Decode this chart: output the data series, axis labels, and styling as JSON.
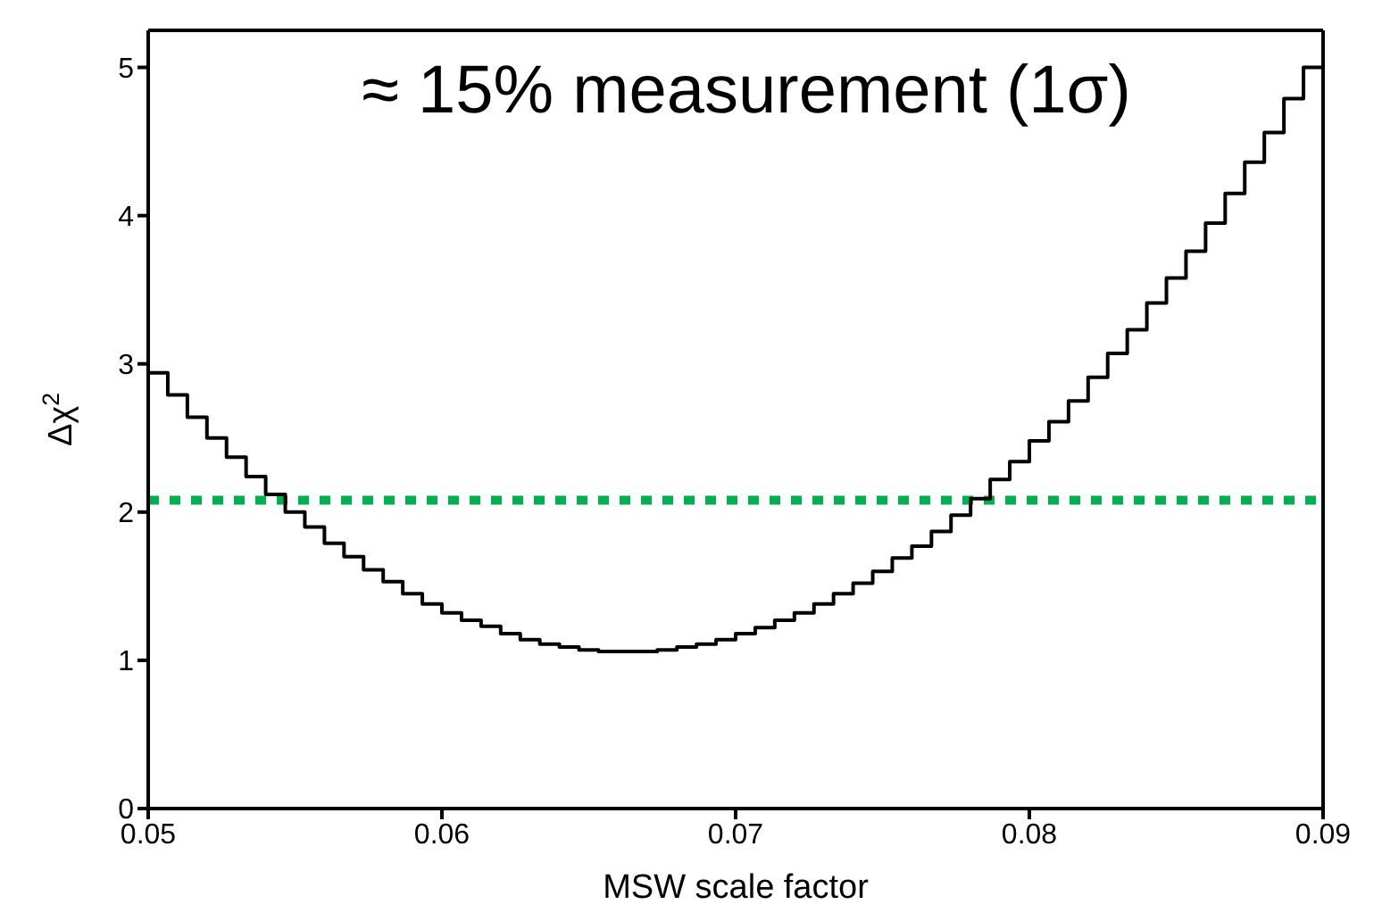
{
  "chart_data": {
    "type": "histogram",
    "xlabel": "MSW scale factor",
    "ylabel": "Δχ$^{2}$",
    "annotations": [
      "≈ 15% measurement (1σ)"
    ],
    "bins": [
      0.05,
      0.050667,
      0.051333,
      0.052,
      0.052667,
      0.053333,
      0.054,
      0.054667,
      0.055333,
      0.056,
      0.056667,
      0.057333,
      0.058,
      0.058667,
      0.059333,
      0.06,
      0.060667,
      0.061333,
      0.062,
      0.062667,
      0.063333,
      0.064,
      0.064667,
      0.065333,
      0.066,
      0.066667,
      0.067333,
      0.068,
      0.068667,
      0.069333,
      0.07,
      0.070667,
      0.071333,
      0.072,
      0.072667,
      0.073333,
      0.074,
      0.074667,
      0.075333,
      0.076,
      0.076667,
      0.077333,
      0.078,
      0.078667,
      0.079333,
      0.08,
      0.080667,
      0.081333,
      0.082,
      0.082667,
      0.083333,
      0.084,
      0.084667,
      0.085333,
      0.086,
      0.086667,
      0.087333,
      0.088,
      0.088667,
      0.089333,
      0.09
    ],
    "values": [
      2.94,
      2.79,
      2.64,
      2.5,
      2.37,
      2.24,
      2.12,
      2.0,
      1.9,
      1.79,
      1.7,
      1.61,
      1.53,
      1.45,
      1.38,
      1.32,
      1.27,
      1.23,
      1.18,
      1.14,
      1.11,
      1.09,
      1.07,
      1.06,
      1.06,
      1.06,
      1.07,
      1.09,
      1.11,
      1.14,
      1.18,
      1.22,
      1.27,
      1.32,
      1.38,
      1.45,
      1.52,
      1.6,
      1.69,
      1.77,
      1.87,
      1.98,
      2.09,
      2.22,
      2.34,
      2.48,
      2.61,
      2.75,
      2.91,
      3.07,
      3.23,
      3.41,
      3.58,
      3.76,
      3.95,
      4.15,
      4.36,
      4.56,
      4.79,
      5.0
    ],
    "color": "#000000",
    "xlim": [
      0.05,
      0.09
    ],
    "xticks": [
      0.05,
      0.06,
      0.07,
      0.08,
      0.09
    ],
    "ylim": [
      0,
      5.25
    ],
    "yticks": [
      0,
      1,
      2,
      3,
      4,
      5
    ],
    "ref_lines": [
      {
        "axis": "y",
        "value": 2.08,
        "color": "#00b050",
        "line_style": "dotted"
      }
    ]
  }
}
